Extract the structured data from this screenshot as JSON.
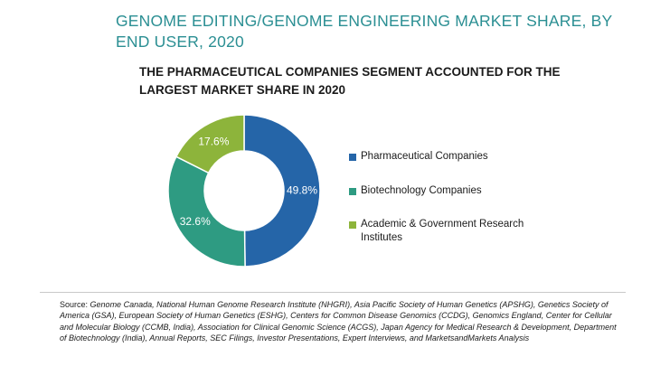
{
  "title": "GENOME EDITING/GENOME ENGINEERING MARKET SHARE, BY END USER, 2020",
  "subtitle": "THE PHARMACEUTICAL COMPANIES SEGMENT ACCOUNTED FOR THE LARGEST MARKET SHARE IN 2020",
  "source": {
    "prefix": "Source:",
    "text": "Genome Canada, National Human Genome Research Institute (NHGRI), Asia Pacific Society of Human Genetics (APSHG), Genetics Society of America (GSA), European Society of Human Genetics (ESHG), Centers for Common Disease Genomics (CCDG), Genomics England, Center for Cellular and Molecular Biology (CCMB, India), Association for Clinical Genomic Science (ACGS), Japan Agency for Medical Research & Development, Department of Biotechnology (India), Annual Reports, SEC Filings, Investor Presentations, Expert Interviews, and MarketsandMarkets Analysis"
  },
  "colors": {
    "title": "#2b8f93",
    "pharmaceutical": "#2565a8",
    "biotechnology": "#2e9b82",
    "academic": "#8db43b"
  },
  "chart_data": {
    "type": "pie",
    "donut": true,
    "title": "",
    "categories": [
      "Pharmaceutical Companies",
      "Biotechnology Companies",
      "Academic & Government Research Institutes"
    ],
    "values": [
      49.8,
      32.6,
      17.6
    ],
    "labels": [
      "49.8%",
      "32.6%",
      "17.6%"
    ],
    "unit": "%",
    "legend_position": "right"
  }
}
